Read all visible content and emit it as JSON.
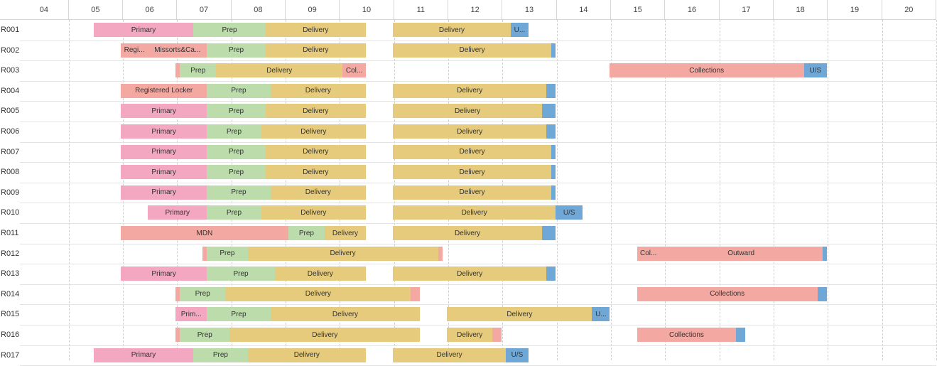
{
  "colors": {
    "Primary": "#f4a7c0",
    "Prep": "#bcdcab",
    "Delivery": "#e6cb7c",
    "UnitStop": "#6fa8d6",
    "Salmon": "#f3a8a2"
  },
  "timeline": {
    "hours": [
      "04",
      "05",
      "06",
      "07",
      "08",
      "09",
      "10",
      "11",
      "12",
      "13",
      "14",
      "15",
      "16",
      "17",
      "18",
      "19",
      "20"
    ],
    "start_hour": 3.6,
    "end_hour": 20.5
  },
  "rows": [
    {
      "label": "R001",
      "tasks": [
        {
          "text": "Primary",
          "type": "Primary",
          "start": 4.96,
          "end": 6.8
        },
        {
          "text": "Prep",
          "type": "Prep",
          "start": 6.8,
          "end": 8.13
        },
        {
          "text": "Delivery",
          "type": "Delivery",
          "start": 8.13,
          "end": 9.98
        },
        {
          "text": "Delivery",
          "type": "Delivery",
          "start": 10.48,
          "end": 12.65
        },
        {
          "text": "U...",
          "type": "UnitStop",
          "start": 12.65,
          "end": 12.98
        }
      ]
    },
    {
      "label": "R002",
      "tasks": [
        {
          "text": "Regi...",
          "type": "Salmon",
          "start": 5.46,
          "end": 5.96
        },
        {
          "text": "Missorts&Ca...",
          "type": "Salmon",
          "start": 5.96,
          "end": 7.05
        },
        {
          "text": "Prep",
          "type": "Prep",
          "start": 7.05,
          "end": 8.13
        },
        {
          "text": "Delivery",
          "type": "Delivery",
          "start": 8.13,
          "end": 9.98
        },
        {
          "text": "Delivery",
          "type": "Delivery",
          "start": 10.48,
          "end": 13.4
        },
        {
          "text": "",
          "type": "UnitStop",
          "start": 13.4,
          "end": 13.48
        }
      ]
    },
    {
      "label": "R003",
      "tasks": [
        {
          "text": "",
          "type": "Salmon",
          "start": 6.47,
          "end": 6.55
        },
        {
          "text": "Prep",
          "type": "Prep",
          "start": 6.55,
          "end": 7.22
        },
        {
          "text": "Delivery",
          "type": "Delivery",
          "start": 7.22,
          "end": 9.55
        },
        {
          "text": "Col...",
          "type": "Salmon",
          "start": 9.55,
          "end": 9.98
        },
        {
          "text": "Collections",
          "type": "Salmon",
          "start": 14.47,
          "end": 18.06
        },
        {
          "text": "U/S",
          "type": "UnitStop",
          "start": 18.06,
          "end": 18.48
        }
      ]
    },
    {
      "label": "R004",
      "tasks": [
        {
          "text": "Registered Locker",
          "type": "Salmon",
          "start": 5.46,
          "end": 7.05
        },
        {
          "text": "Prep",
          "type": "Prep",
          "start": 7.05,
          "end": 8.22
        },
        {
          "text": "Delivery",
          "type": "Delivery",
          "start": 8.22,
          "end": 9.98
        },
        {
          "text": "Delivery",
          "type": "Delivery",
          "start": 10.48,
          "end": 13.31
        },
        {
          "text": "",
          "type": "UnitStop",
          "start": 13.31,
          "end": 13.48
        }
      ]
    },
    {
      "label": "R005",
      "tasks": [
        {
          "text": "Primary",
          "type": "Primary",
          "start": 5.46,
          "end": 7.05
        },
        {
          "text": "Prep",
          "type": "Prep",
          "start": 7.05,
          "end": 8.13
        },
        {
          "text": "Delivery",
          "type": "Delivery",
          "start": 8.13,
          "end": 9.98
        },
        {
          "text": "Delivery",
          "type": "Delivery",
          "start": 10.48,
          "end": 13.23
        },
        {
          "text": "",
          "type": "UnitStop",
          "start": 13.23,
          "end": 13.48
        }
      ]
    },
    {
      "label": "R006",
      "tasks": [
        {
          "text": "Primary",
          "type": "Primary",
          "start": 5.46,
          "end": 7.05
        },
        {
          "text": "Prep",
          "type": "Prep",
          "start": 7.05,
          "end": 8.05
        },
        {
          "text": "Delivery",
          "type": "Delivery",
          "start": 8.05,
          "end": 9.98
        },
        {
          "text": "Delivery",
          "type": "Delivery",
          "start": 10.48,
          "end": 13.31
        },
        {
          "text": "",
          "type": "UnitStop",
          "start": 13.31,
          "end": 13.48
        }
      ]
    },
    {
      "label": "R007",
      "tasks": [
        {
          "text": "Primary",
          "type": "Primary",
          "start": 5.46,
          "end": 7.05
        },
        {
          "text": "Prep",
          "type": "Prep",
          "start": 7.05,
          "end": 8.13
        },
        {
          "text": "Delivery",
          "type": "Delivery",
          "start": 8.13,
          "end": 9.98
        },
        {
          "text": "Delivery",
          "type": "Delivery",
          "start": 10.48,
          "end": 13.4
        },
        {
          "text": "",
          "type": "UnitStop",
          "start": 13.4,
          "end": 13.48
        }
      ]
    },
    {
      "label": "R008",
      "tasks": [
        {
          "text": "Primary",
          "type": "Primary",
          "start": 5.46,
          "end": 7.05
        },
        {
          "text": "Prep",
          "type": "Prep",
          "start": 7.05,
          "end": 8.13
        },
        {
          "text": "Delivery",
          "type": "Delivery",
          "start": 8.13,
          "end": 9.98
        },
        {
          "text": "Delivery",
          "type": "Delivery",
          "start": 10.48,
          "end": 13.4
        },
        {
          "text": "",
          "type": "UnitStop",
          "start": 13.4,
          "end": 13.48
        }
      ]
    },
    {
      "label": "R009",
      "tasks": [
        {
          "text": "Primary",
          "type": "Primary",
          "start": 5.46,
          "end": 7.05
        },
        {
          "text": "Prep",
          "type": "Prep",
          "start": 7.05,
          "end": 8.22
        },
        {
          "text": "Delivery",
          "type": "Delivery",
          "start": 8.22,
          "end": 9.98
        },
        {
          "text": "Delivery",
          "type": "Delivery",
          "start": 10.48,
          "end": 13.4
        },
        {
          "text": "",
          "type": "UnitStop",
          "start": 13.4,
          "end": 13.48
        }
      ]
    },
    {
      "label": "R010",
      "tasks": [
        {
          "text": "Primary",
          "type": "Primary",
          "start": 5.96,
          "end": 7.05
        },
        {
          "text": "Prep",
          "type": "Prep",
          "start": 7.05,
          "end": 8.05
        },
        {
          "text": "Delivery",
          "type": "Delivery",
          "start": 8.05,
          "end": 9.98
        },
        {
          "text": "Delivery",
          "type": "Delivery",
          "start": 10.48,
          "end": 13.48
        },
        {
          "text": "U/S",
          "type": "UnitStop",
          "start": 13.48,
          "end": 13.98
        }
      ]
    },
    {
      "label": "R011",
      "tasks": [
        {
          "text": "MDN",
          "type": "Salmon",
          "start": 5.46,
          "end": 8.55
        },
        {
          "text": "Prep",
          "type": "Prep",
          "start": 8.55,
          "end": 9.22
        },
        {
          "text": "Delivery",
          "type": "Delivery",
          "start": 9.22,
          "end": 9.98
        },
        {
          "text": "Delivery",
          "type": "Delivery",
          "start": 10.48,
          "end": 13.23
        },
        {
          "text": "",
          "type": "UnitStop",
          "start": 13.23,
          "end": 13.48
        }
      ]
    },
    {
      "label": "R012",
      "tasks": [
        {
          "text": "",
          "type": "Salmon",
          "start": 6.97,
          "end": 7.05
        },
        {
          "text": "Prep",
          "type": "Prep",
          "start": 7.05,
          "end": 7.8
        },
        {
          "text": "Delivery",
          "type": "Delivery",
          "start": 7.8,
          "end": 11.31
        },
        {
          "text": "",
          "type": "Salmon",
          "start": 11.31,
          "end": 11.4
        },
        {
          "text": "Col...",
          "type": "Salmon",
          "start": 14.98,
          "end": 15.4
        },
        {
          "text": "Outward",
          "type": "Salmon",
          "start": 15.4,
          "end": 18.4
        },
        {
          "text": "",
          "type": "UnitStop",
          "start": 18.4,
          "end": 18.48
        }
      ]
    },
    {
      "label": "R013",
      "tasks": [
        {
          "text": "Primary",
          "type": "Primary",
          "start": 5.46,
          "end": 7.05
        },
        {
          "text": "Prep",
          "type": "Prep",
          "start": 7.05,
          "end": 8.3
        },
        {
          "text": "Delivery",
          "type": "Delivery",
          "start": 8.3,
          "end": 9.98
        },
        {
          "text": "Delivery",
          "type": "Delivery",
          "start": 10.48,
          "end": 13.31
        },
        {
          "text": "",
          "type": "UnitStop",
          "start": 13.31,
          "end": 13.48
        }
      ]
    },
    {
      "label": "R014",
      "tasks": [
        {
          "text": "",
          "type": "Salmon",
          "start": 6.47,
          "end": 6.55
        },
        {
          "text": "Prep",
          "type": "Prep",
          "start": 6.55,
          "end": 7.39
        },
        {
          "text": "Delivery",
          "type": "Delivery",
          "start": 7.39,
          "end": 10.81
        },
        {
          "text": "",
          "type": "Salmon",
          "start": 10.81,
          "end": 10.98
        },
        {
          "text": "Collections",
          "type": "Salmon",
          "start": 14.98,
          "end": 18.31
        },
        {
          "text": "",
          "type": "UnitStop",
          "start": 18.31,
          "end": 18.48
        }
      ]
    },
    {
      "label": "R015",
      "tasks": [
        {
          "text": "Prim...",
          "type": "Primary",
          "start": 6.47,
          "end": 7.05
        },
        {
          "text": "Prep",
          "type": "Prep",
          "start": 7.05,
          "end": 8.22
        },
        {
          "text": "Delivery",
          "type": "Delivery",
          "start": 8.22,
          "end": 10.98
        },
        {
          "text": "Delivery",
          "type": "Delivery",
          "start": 11.48,
          "end": 14.15
        },
        {
          "text": "U...",
          "type": "UnitStop",
          "start": 14.15,
          "end": 14.48
        }
      ]
    },
    {
      "label": "R016",
      "tasks": [
        {
          "text": "",
          "type": "Salmon",
          "start": 6.47,
          "end": 6.55
        },
        {
          "text": "Prep",
          "type": "Prep",
          "start": 6.55,
          "end": 7.47
        },
        {
          "text": "Delivery",
          "type": "Delivery",
          "start": 7.47,
          "end": 10.98
        },
        {
          "text": "Delivery",
          "type": "Delivery",
          "start": 11.48,
          "end": 12.31
        },
        {
          "text": "",
          "type": "Salmon",
          "start": 12.31,
          "end": 12.48
        },
        {
          "text": "Collections",
          "type": "Salmon",
          "start": 14.98,
          "end": 16.81
        },
        {
          "text": "",
          "type": "UnitStop",
          "start": 16.81,
          "end": 16.98
        }
      ]
    },
    {
      "label": "R017",
      "tasks": [
        {
          "text": "Primary",
          "type": "Primary",
          "start": 4.96,
          "end": 6.8
        },
        {
          "text": "Prep",
          "type": "Prep",
          "start": 6.8,
          "end": 7.8
        },
        {
          "text": "Delivery",
          "type": "Delivery",
          "start": 7.8,
          "end": 9.98
        },
        {
          "text": "Delivery",
          "type": "Delivery",
          "start": 10.48,
          "end": 12.56
        },
        {
          "text": "U/S",
          "type": "UnitStop",
          "start": 12.56,
          "end": 12.98
        }
      ]
    }
  ]
}
